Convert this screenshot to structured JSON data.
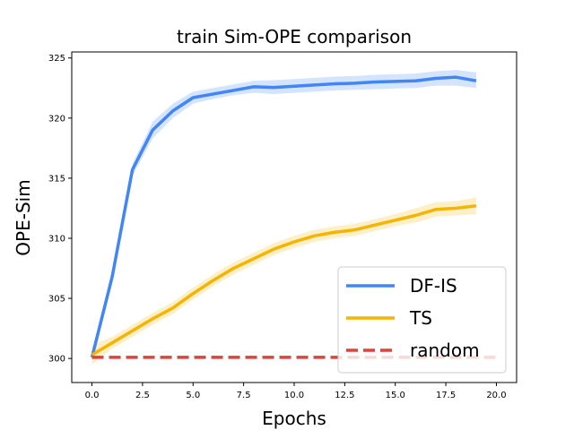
{
  "chart_data": {
    "type": "line",
    "title": "train Sim-OPE comparison",
    "xlabel": "Epochs",
    "ylabel": "OPE-Sim",
    "xlim": [
      -1,
      21
    ],
    "ylim": [
      298,
      325.5
    ],
    "xticks": [
      0,
      2.5,
      5,
      7.5,
      10,
      12.5,
      15,
      17.5,
      20
    ],
    "xtick_labels": [
      "0.0",
      "2.5",
      "5.0",
      "7.5",
      "10.0",
      "12.5",
      "15.0",
      "17.5",
      "20.0"
    ],
    "yticks": [
      300,
      305,
      310,
      315,
      320,
      325
    ],
    "ytick_labels": [
      "300",
      "305",
      "310",
      "315",
      "320",
      "325"
    ],
    "grid": false,
    "legend_position": "lower-right",
    "series": [
      {
        "name": "DF-IS",
        "color": "#4285f4",
        "style": "solid",
        "x": [
          0,
          1,
          2,
          3,
          4,
          5,
          6,
          7,
          8,
          9,
          10,
          11,
          12,
          13,
          14,
          15,
          16,
          17,
          18,
          19
        ],
        "y": [
          300.1,
          306.8,
          315.7,
          319.0,
          320.6,
          321.7,
          322.0,
          322.3,
          322.6,
          322.55,
          322.65,
          322.75,
          322.85,
          322.9,
          323.0,
          323.05,
          323.1,
          323.3,
          323.4,
          323.1
        ],
        "lower": [
          299.8,
          306.3,
          315.2,
          318.3,
          320.0,
          321.2,
          321.6,
          321.9,
          322.1,
          322.0,
          322.1,
          322.2,
          322.3,
          322.35,
          322.4,
          322.45,
          322.5,
          322.7,
          322.7,
          322.5
        ],
        "upper": [
          300.4,
          307.3,
          316.2,
          319.7,
          321.2,
          322.2,
          322.5,
          322.8,
          323.1,
          323.15,
          323.25,
          323.35,
          323.45,
          323.5,
          323.6,
          323.65,
          323.7,
          323.9,
          324.0,
          323.8
        ]
      },
      {
        "name": "TS",
        "color": "#f4b400",
        "style": "solid",
        "x": [
          0,
          1,
          2,
          3,
          4,
          5,
          6,
          7,
          8,
          9,
          10,
          11,
          12,
          13,
          14,
          15,
          16,
          17,
          18,
          19
        ],
        "y": [
          300.3,
          301.3,
          302.3,
          303.3,
          304.2,
          305.4,
          306.5,
          307.5,
          308.3,
          309.1,
          309.7,
          310.2,
          310.5,
          310.7,
          311.1,
          311.5,
          311.9,
          312.4,
          312.5,
          312.7
        ],
        "lower": [
          299.5,
          300.8,
          301.8,
          302.8,
          303.7,
          304.9,
          306.0,
          307.0,
          307.8,
          308.6,
          309.2,
          309.7,
          310.0,
          310.2,
          310.6,
          311.0,
          311.3,
          311.8,
          311.9,
          312.0
        ],
        "upper": [
          301.1,
          301.8,
          302.8,
          303.8,
          304.7,
          305.9,
          307.0,
          308.0,
          308.8,
          309.6,
          310.2,
          310.7,
          311.0,
          311.2,
          311.6,
          312.0,
          312.5,
          313.0,
          313.1,
          313.4
        ]
      },
      {
        "name": "random",
        "color": "#db4437",
        "style": "dashed",
        "x": [
          0,
          20
        ],
        "y": [
          300.1,
          300.1
        ]
      }
    ]
  }
}
